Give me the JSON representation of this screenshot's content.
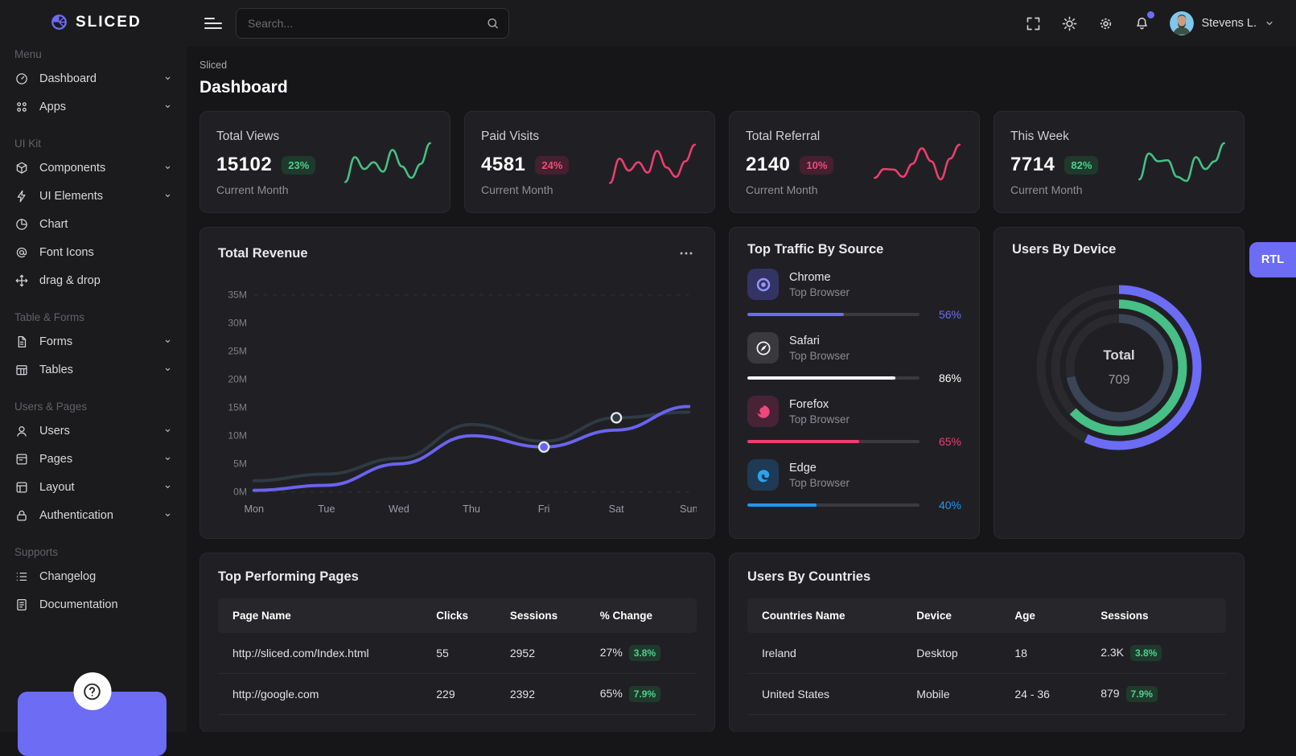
{
  "topbar": {
    "search_placeholder": "Search...",
    "user_name": "Stevens L."
  },
  "page": {
    "breadcrumb": "Sliced",
    "title": "Dashboard"
  },
  "sidebar": {
    "logo_text": "SLICED",
    "sections": [
      {
        "label": "Menu",
        "items": [
          {
            "label": "Dashboard",
            "icon": "speedometer",
            "chevron": true
          },
          {
            "label": "Apps",
            "icon": "grid",
            "chevron": true
          }
        ]
      },
      {
        "label": "UI Kit",
        "items": [
          {
            "label": "Components",
            "icon": "cube",
            "chevron": true
          },
          {
            "label": "UI Elements",
            "icon": "lightning",
            "chevron": true
          },
          {
            "label": "Chart",
            "icon": "pie",
            "chevron": false
          },
          {
            "label": "Font Icons",
            "icon": "at",
            "chevron": false
          },
          {
            "label": "drag & drop",
            "icon": "move",
            "chevron": false
          }
        ]
      },
      {
        "label": "Table & Forms",
        "items": [
          {
            "label": "Forms",
            "icon": "file",
            "chevron": true
          },
          {
            "label": "Tables",
            "icon": "table",
            "chevron": true
          }
        ]
      },
      {
        "label": "Users & Pages",
        "items": [
          {
            "label": "Users",
            "icon": "user",
            "chevron": true
          },
          {
            "label": "Pages",
            "icon": "pages",
            "chevron": true
          },
          {
            "label": "Layout",
            "icon": "layout",
            "chevron": true
          },
          {
            "label": "Authentication",
            "icon": "lock",
            "chevron": true
          }
        ]
      },
      {
        "label": "Supports",
        "items": [
          {
            "label": "Changelog",
            "icon": "changelog",
            "chevron": false
          },
          {
            "label": "Documentation",
            "icon": "doc",
            "chevron": false
          }
        ]
      }
    ]
  },
  "stat_cards": [
    {
      "title": "Total Views",
      "value": "15102",
      "badge": "23%",
      "caption": "Current Month",
      "badge_bg": "#1f3a2d",
      "badge_text": "#4cd08d"
    },
    {
      "title": "Paid Visits",
      "value": "4581",
      "badge": "24%",
      "caption": "Current Month",
      "badge_bg": "#45202f",
      "badge_text": "#f4497b"
    },
    {
      "title": "Total Referral",
      "value": "2140",
      "badge": "10%",
      "caption": "Current Month",
      "badge_bg": "#45202f",
      "badge_text": "#f4497b"
    },
    {
      "title": "This Week",
      "value": "7714",
      "badge": "82%",
      "caption": "Current Month",
      "badge_bg": "#1f3a2d",
      "badge_text": "#4cd08d"
    }
  ],
  "chart_data": [
    {
      "type": "line",
      "title": "Total Revenue",
      "x": [
        "Mon",
        "Tue",
        "Wed",
        "Thu",
        "Fri",
        "Sat",
        "Sun"
      ],
      "y_ticks": [
        "35M",
        "30M",
        "25M",
        "20M",
        "15M",
        "10M",
        "5M",
        "0M"
      ],
      "ylim": [
        0,
        35
      ],
      "unit": "M",
      "legend": "none",
      "grid": "dashed lines at 35M and 0M only",
      "series": [
        {
          "name": "previous",
          "color": "#2f3a45",
          "values": [
            2,
            3.2,
            6,
            12,
            9,
            13.2,
            14.2
          ],
          "marker_index": 5
        },
        {
          "name": "current",
          "color": "#6b63f0",
          "values": [
            0.3,
            1.2,
            5,
            10,
            8,
            11,
            15.2
          ],
          "marker_index": 4
        }
      ]
    },
    {
      "type": "donut",
      "title": "Users By Device",
      "center_label": "Total",
      "center_value": "709",
      "rings": [
        {
          "name": "outer",
          "color": "#6c6cf5",
          "percent": 57
        },
        {
          "name": "middle",
          "color": "#46c085",
          "percent": 63
        },
        {
          "name": "inner",
          "color": "#3b4557",
          "percent": 72
        }
      ]
    },
    {
      "type": "sparkline",
      "title": "Total Views",
      "color": "#46c085",
      "values": [
        20,
        68,
        45,
        58,
        40,
        82,
        50,
        28,
        55,
        95
      ]
    },
    {
      "type": "sparkline",
      "title": "Paid Visits",
      "color": "#ee3d70",
      "values": [
        18,
        65,
        42,
        58,
        38,
        80,
        48,
        30,
        60,
        92
      ]
    },
    {
      "type": "sparkline",
      "title": "Total Referral",
      "color": "#ee3d70",
      "values": [
        28,
        45,
        44,
        30,
        55,
        85,
        60,
        25,
        65,
        92
      ]
    },
    {
      "type": "sparkline",
      "title": "This Week",
      "color": "#46c085",
      "values": [
        25,
        75,
        60,
        62,
        30,
        22,
        68,
        45,
        60,
        95
      ]
    }
  ],
  "traffic": {
    "title": "Top Traffic By Source",
    "items": [
      {
        "name": "Chrome",
        "subtitle": "Top Browser",
        "percent": 56,
        "color": "#6c6cf5",
        "tile_bg": "#343365"
      },
      {
        "name": "Safari",
        "subtitle": "Top Browser",
        "percent": 86,
        "color": "#ffffff",
        "tile_bg": "#3a3a3e"
      },
      {
        "name": "Forefox",
        "subtitle": "Top Browser",
        "percent": 65,
        "color": "#ee3d70",
        "tile_bg": "#482335"
      },
      {
        "name": "Edge",
        "subtitle": "Top Browser",
        "percent": 40,
        "color": "#2196f3",
        "tile_bg": "#1e3a55"
      }
    ]
  },
  "device_card": {
    "title": "Users By Device",
    "rtl_label": "RTL"
  },
  "pages_table": {
    "title": "Top Performing Pages",
    "columns": [
      "Page Name",
      "Clicks",
      "Sessions",
      "% Change"
    ],
    "rows": [
      {
        "cells": [
          "http://sliced.com/Index.html",
          "55",
          "2952",
          "27%"
        ],
        "badge": "3.8%"
      },
      {
        "cells": [
          "http://google.com",
          "229",
          "2392",
          "65%"
        ],
        "badge": "7.9%"
      }
    ]
  },
  "countries_table": {
    "title": "Users By Countries",
    "columns": [
      "Countries Name",
      "Device",
      "Age",
      "Sessions"
    ],
    "rows": [
      {
        "cells": [
          "Ireland",
          "Desktop",
          "18",
          "2.3K"
        ],
        "badge": "3.8%"
      },
      {
        "cells": [
          "United States",
          "Mobile",
          "24 - 36",
          "879"
        ],
        "badge": "7.9%"
      }
    ]
  },
  "colors": {
    "accent": "#6c6cf5",
    "green": "#46c085",
    "pink": "#ee3d70",
    "blue": "#2196f3"
  }
}
